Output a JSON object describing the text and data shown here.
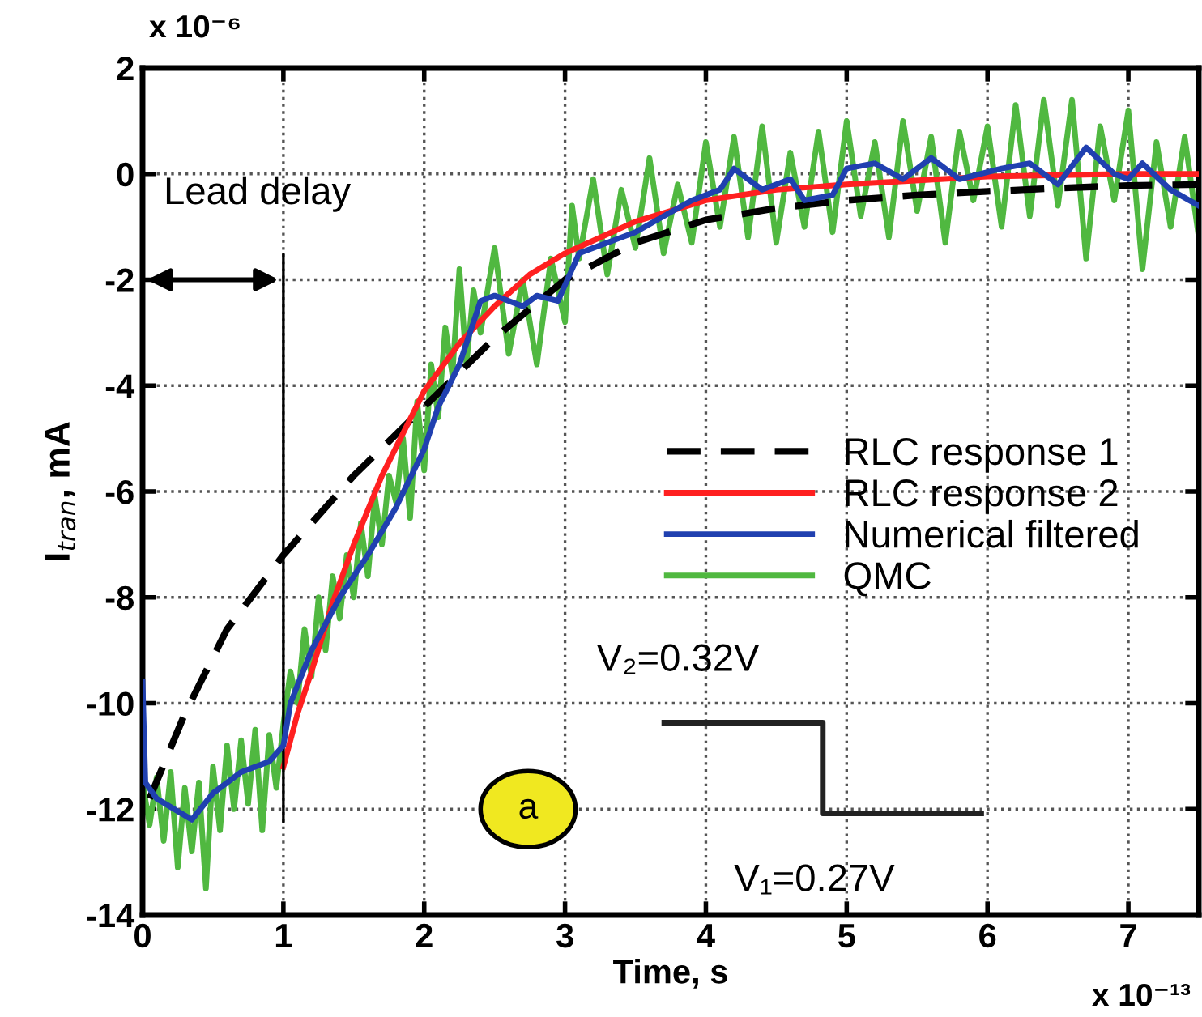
{
  "chart_data": {
    "type": "line",
    "xlabel": "Time, s",
    "ylabel": "I$_{tran}$, mA",
    "xlim": [
      0,
      7.5
    ],
    "ylim": [
      -14,
      2
    ],
    "xticks": [
      0,
      1,
      2,
      3,
      4,
      5,
      6,
      7
    ],
    "yticks": [
      -14,
      -12,
      -10,
      -8,
      -6,
      -4,
      -2,
      0,
      2
    ],
    "grid": true,
    "legend": "right",
    "series": [
      {
        "name": "RLC response 1",
        "color": "#000000",
        "line_style": "dashed",
        "x": [
          0.05,
          0.3,
          0.6,
          1,
          1.5,
          2,
          2.5,
          3,
          3.5,
          4,
          4.5,
          5,
          5.5,
          6,
          6.5,
          7,
          7.5
        ],
        "values": [
          -11.8,
          -10.2,
          -8.6,
          -7.2,
          -5.7,
          -4.4,
          -3.1,
          -2.0,
          -1.3,
          -0.87,
          -0.65,
          -0.5,
          -0.4,
          -0.33,
          -0.27,
          -0.22,
          -0.2
        ]
      },
      {
        "name": "RLC response 2",
        "color": "#ff2020",
        "line_style": "solid",
        "x": [
          1,
          1.1,
          1.2,
          1.35,
          1.5,
          1.7,
          2,
          2.25,
          2.5,
          2.75,
          3,
          3.5,
          4,
          4.5,
          5,
          6,
          7,
          7.5
        ],
        "values": [
          -11.2,
          -10.2,
          -9.4,
          -8.1,
          -7.0,
          -5.7,
          -4.1,
          -3.2,
          -2.5,
          -1.9,
          -1.5,
          -0.9,
          -0.5,
          -0.3,
          -0.2,
          -0.05,
          0,
          0
        ]
      },
      {
        "name": "Numerical filtered",
        "color": "#2040b0",
        "line_style": "solid",
        "x": [
          0,
          0.02,
          0.1,
          0.35,
          0.5,
          0.7,
          0.9,
          1.0,
          1.05,
          1.2,
          1.4,
          1.6,
          1.8,
          2.0,
          2.1,
          2.25,
          2.4,
          2.5,
          2.7,
          2.8,
          2.95,
          3.1,
          3.3,
          3.5,
          3.7,
          3.9,
          4.1,
          4.2,
          4.4,
          4.6,
          4.7,
          4.9,
          5.0,
          5.2,
          5.4,
          5.6,
          5.8,
          6.1,
          6.3,
          6.5,
          6.7,
          6.9,
          7.0,
          7.1,
          7.3,
          7.5
        ],
        "values": [
          -9.6,
          -11.5,
          -11.8,
          -12.2,
          -11.7,
          -11.3,
          -11.1,
          -10.8,
          -10.0,
          -9.0,
          -8.0,
          -7.2,
          -6.3,
          -5.2,
          -4.4,
          -3.6,
          -2.4,
          -2.3,
          -2.5,
          -2.3,
          -2.4,
          -1.5,
          -1.3,
          -1.1,
          -0.8,
          -0.5,
          -0.3,
          0.1,
          -0.3,
          -0.1,
          -0.5,
          -0.4,
          0.1,
          0.2,
          -0.1,
          0.3,
          -0.1,
          0.1,
          0.2,
          -0.2,
          0.5,
          0.0,
          -0.1,
          0.2,
          -0.3,
          -0.6
        ]
      },
      {
        "name": "QMC",
        "color": "#50b840",
        "line_style": "solid",
        "x": [
          0,
          0.05,
          0.1,
          0.15,
          0.2,
          0.25,
          0.3,
          0.35,
          0.4,
          0.45,
          0.5,
          0.55,
          0.6,
          0.65,
          0.7,
          0.75,
          0.8,
          0.85,
          0.9,
          0.95,
          1.0,
          1.05,
          1.1,
          1.15,
          1.2,
          1.25,
          1.3,
          1.35,
          1.4,
          1.45,
          1.5,
          1.55,
          1.6,
          1.65,
          1.7,
          1.75,
          1.8,
          1.85,
          1.9,
          1.95,
          2.0,
          2.05,
          2.1,
          2.15,
          2.2,
          2.25,
          2.3,
          2.35,
          2.4,
          2.5,
          2.6,
          2.7,
          2.8,
          2.9,
          3.0,
          3.05,
          3.1,
          3.2,
          3.3,
          3.4,
          3.5,
          3.6,
          3.7,
          3.8,
          3.9,
          4.0,
          4.1,
          4.2,
          4.3,
          4.4,
          4.5,
          4.6,
          4.7,
          4.8,
          4.9,
          5.0,
          5.1,
          5.2,
          5.3,
          5.4,
          5.5,
          5.6,
          5.7,
          5.8,
          5.9,
          6.0,
          6.1,
          6.2,
          6.3,
          6.4,
          6.5,
          6.6,
          6.7,
          6.8,
          6.9,
          7.0,
          7.1,
          7.2,
          7.3,
          7.4,
          7.5
        ],
        "values": [
          -11.5,
          -12.3,
          -11.4,
          -12.6,
          -11.3,
          -13.1,
          -11.6,
          -12.8,
          -11.5,
          -13.5,
          -11.2,
          -12.4,
          -10.8,
          -12.0,
          -10.7,
          -11.9,
          -10.5,
          -12.4,
          -10.6,
          -11.6,
          -10.4,
          -9.4,
          -10.0,
          -8.6,
          -9.5,
          -8.0,
          -9.0,
          -7.6,
          -8.4,
          -7.2,
          -8.0,
          -6.6,
          -7.6,
          -6.1,
          -7.0,
          -5.7,
          -6.2,
          -5.0,
          -6.5,
          -4.3,
          -5.6,
          -3.6,
          -4.6,
          -2.9,
          -3.8,
          -1.8,
          -3.6,
          -2.2,
          -3.0,
          -1.4,
          -3.4,
          -2.0,
          -3.6,
          -1.6,
          -2.8,
          -0.6,
          -1.6,
          -0.1,
          -1.9,
          -0.3,
          -1.4,
          0.3,
          -1.5,
          -0.2,
          -1.3,
          0.6,
          -1.0,
          0.7,
          -1.2,
          0.9,
          -1.3,
          0.4,
          -1.0,
          0.8,
          -1.1,
          1.0,
          -0.8,
          0.6,
          -1.2,
          1.0,
          -0.7,
          0.7,
          -1.3,
          0.8,
          -0.5,
          0.9,
          -1.0,
          1.3,
          -0.8,
          1.4,
          -0.6,
          1.4,
          -1.6,
          0.9,
          -0.5,
          1.2,
          -1.8,
          0.6,
          -1.0,
          0.7,
          -1.2
        ]
      }
    ],
    "ref_lines": [
      {
        "axis": "x",
        "value": 1,
        "label": "Lead delay",
        "color": "#000000"
      }
    ],
    "annotations": [
      "x 10⁻⁶",
      "x 10⁻¹³",
      "V₂=0.32V",
      "V₁=0.27V",
      "a"
    ]
  }
}
